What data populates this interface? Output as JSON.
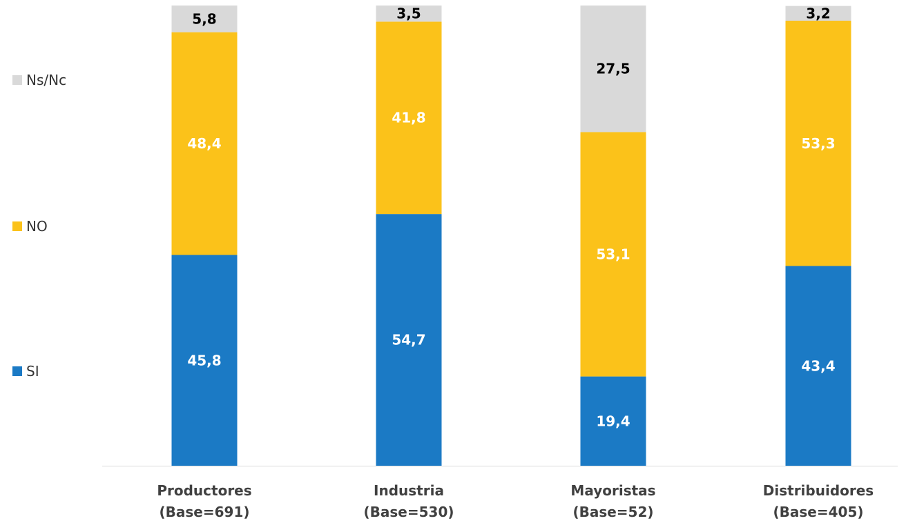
{
  "legend": [
    {
      "name": "Ns/Nc",
      "color": "#D9D9D9"
    },
    {
      "name": "NO",
      "color": "#FBC21A"
    },
    {
      "name": "SI",
      "color": "#1B7AC5"
    }
  ],
  "chart_data": {
    "type": "bar",
    "stacked": true,
    "categories": [
      [
        "Productores",
        "(Base=691)"
      ],
      [
        "Industria",
        "(Base=530)"
      ],
      [
        "Mayoristas",
        "(Base=52)"
      ],
      [
        "Distribuidores",
        "(Base=405)"
      ]
    ],
    "series": [
      {
        "name": "SI",
        "color": "#1B7AC5",
        "values": [
          45.8,
          54.7,
          19.4,
          43.4
        ],
        "labels": [
          "45,8",
          "54,7",
          "19,4",
          "43,4"
        ],
        "label_color": "#FFFFFF"
      },
      {
        "name": "NO",
        "color": "#FBC21A",
        "values": [
          48.4,
          41.8,
          53.1,
          53.3
        ],
        "labels": [
          "48,4",
          "41,8",
          "53,1",
          "53,3"
        ],
        "label_color": "#FFFFFF"
      },
      {
        "name": "Ns/Nc",
        "color": "#D9D9D9",
        "values": [
          5.8,
          3.5,
          27.5,
          3.2
        ],
        "labels": [
          "5,8",
          "3,5",
          "27,5",
          "3,2"
        ],
        "label_color": "#000000"
      }
    ],
    "ylim": [
      0,
      100
    ],
    "grid": false,
    "legend_position": "left",
    "title": "",
    "xlabel": "",
    "ylabel": ""
  }
}
